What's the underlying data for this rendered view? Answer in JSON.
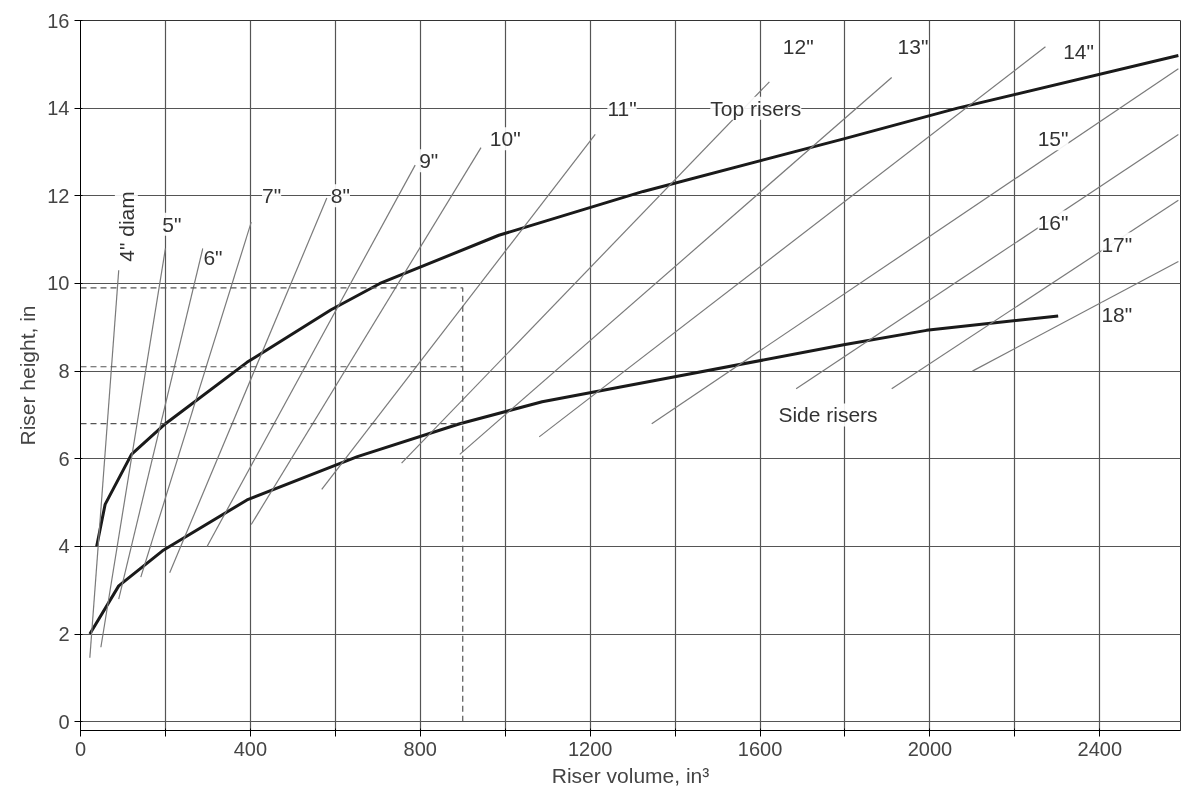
{
  "chart_data": {
    "type": "line",
    "xlabel": "Riser volume, in³",
    "ylabel": "Riser height, in",
    "xlim": [
      0,
      2590
    ],
    "ylim": [
      -0.2,
      16
    ],
    "xticks": [
      0,
      {
        "value": 200,
        "label": null
      },
      400,
      {
        "value": 600,
        "label": null
      },
      800,
      {
        "value": 1000,
        "label": null
      },
      1200,
      {
        "value": 1400,
        "label": null
      },
      1600,
      {
        "value": 1800,
        "label": null
      },
      2000,
      {
        "value": 2200,
        "label": null
      },
      2400
    ],
    "yticks": [
      0,
      2,
      4,
      6,
      8,
      10,
      12,
      14,
      16
    ],
    "grid": true,
    "marker": "none",
    "line_style": "solid",
    "series": [
      {
        "color": "#1a1a1a",
        "x": [
          38,
          58,
          120,
          200,
          392,
          590,
          705,
          985,
          1325,
          1797,
          2065,
          2585
        ],
        "values": [
          4.0,
          4.96,
          6.1,
          6.8,
          8.2,
          9.4,
          10.0,
          11.1,
          12.1,
          13.3,
          14.0,
          15.2
        ]
      },
      {
        "color": "#1a1a1a",
        "x": [
          22,
          90,
          193,
          392,
          652,
          893,
          1087,
          1387,
          1797,
          1992,
          2302
        ],
        "values": [
          2.0,
          3.1,
          3.9,
          5.06,
          6.05,
          6.8,
          7.3,
          7.85,
          8.6,
          8.93,
          9.26
        ]
      },
      {
        "color": "#7a7a7a",
        "x": [
          22,
          90
        ],
        "values": [
          1.46,
          10.3
        ]
      },
      {
        "color": "#7a7a7a",
        "x": [
          48,
          200
        ],
        "values": [
          1.7,
          10.8
        ]
      },
      {
        "color": "#7a7a7a",
        "x": [
          90,
          288
        ],
        "values": [
          2.8,
          10.8
        ]
      },
      {
        "color": "#7a7a7a",
        "x": [
          142,
          402
        ],
        "values": [
          3.3,
          11.4
        ]
      },
      {
        "color": "#7a7a7a",
        "x": [
          210,
          580
        ],
        "values": [
          3.4,
          11.95
        ]
      },
      {
        "color": "#7a7a7a",
        "x": [
          298,
          788
        ],
        "values": [
          4.0,
          12.7
        ]
      },
      {
        "color": "#7a7a7a",
        "x": [
          402,
          943
        ],
        "values": [
          4.5,
          13.1
        ]
      },
      {
        "color": "#7a7a7a",
        "x": [
          568,
          1212
        ],
        "values": [
          5.3,
          13.4
        ]
      },
      {
        "color": "#7a7a7a",
        "x": [
          756,
          1622
        ],
        "values": [
          5.9,
          14.6
        ]
      },
      {
        "color": "#7a7a7a",
        "x": [
          893,
          1910
        ],
        "values": [
          6.1,
          14.7
        ]
      },
      {
        "color": "#7a7a7a",
        "x": [
          1080,
          2272
        ],
        "values": [
          6.5,
          15.4
        ]
      },
      {
        "color": "#7a7a7a",
        "x": [
          1345,
          2585
        ],
        "values": [
          6.8,
          14.9
        ]
      },
      {
        "color": "#7a7a7a",
        "x": [
          1685,
          2585
        ],
        "values": [
          7.6,
          13.4
        ]
      },
      {
        "color": "#7a7a7a",
        "x": [
          1910,
          2585
        ],
        "values": [
          7.6,
          11.9
        ]
      },
      {
        "color": "#7a7a7a",
        "x": [
          2100,
          2585
        ],
        "values": [
          8.0,
          10.5
        ]
      },
      {
        "color": "#555555",
        "line_style": "dashed",
        "x": [
          0,
          900
        ],
        "values": [
          9.9,
          9.9
        ]
      },
      {
        "color": "#555555",
        "line_style": "dashed",
        "x": [
          0,
          900
        ],
        "values": [
          8.1,
          8.1
        ]
      },
      {
        "color": "#555555",
        "line_style": "dashed",
        "x": [
          0,
          900
        ],
        "values": [
          6.8,
          6.8
        ]
      },
      {
        "color": "#555555",
        "line_style": "dashed",
        "x": [
          900,
          900
        ],
        "values": [
          0,
          9.9
        ]
      }
    ],
    "annotations": [
      "Top risers",
      "Side risers",
      "4\" diam",
      {
        "text": "5\"",
        "x": 215,
        "y": 11.35
      },
      {
        "text": "6\"",
        "x": 312,
        "y": 10.6
      },
      {
        "text": "7\"",
        "x": 450,
        "y": 12.0
      },
      {
        "text": "8\"",
        "x": 612,
        "y": 12.0
      },
      {
        "text": "9\"",
        "x": 820,
        "y": 12.8
      },
      {
        "text": "10\"",
        "x": 1000,
        "y": 13.3
      },
      {
        "text": "11\"",
        "x": 1275,
        "y": 14.0
      },
      {
        "text": "12\"",
        "x": 1690,
        "y": 15.4
      },
      {
        "text": "13\"",
        "x": 1960,
        "y": 15.4
      },
      {
        "text": "14\"",
        "x": 2350,
        "y": 15.3
      },
      {
        "text": "15\"",
        "x": 2290,
        "y": 13.3
      },
      {
        "text": "16\"",
        "x": 2290,
        "y": 11.4
      },
      {
        "text": "17\"",
        "x": 2440,
        "y": 10.9
      },
      {
        "text": "18\"",
        "x": 2440,
        "y": 9.3
      }
    ]
  }
}
